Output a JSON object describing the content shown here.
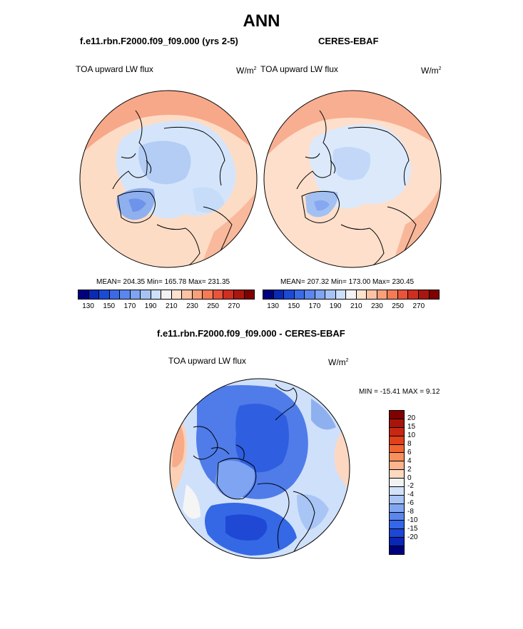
{
  "title": "ANN",
  "panels": {
    "model": {
      "title": "f.e11.rbn.F2000.f09_f09.000 (yrs 2-5)",
      "variable": "TOA upward LW flux",
      "units_base": "W/m",
      "units_exp": "2",
      "stats": "MEAN= 204.35  Min= 165.78  Max= 231.35"
    },
    "obs": {
      "title": "CERES-EBAF",
      "variable": "TOA upward LW flux",
      "units_base": "W/m",
      "units_exp": "2",
      "stats": "MEAN= 207.32  Min= 173.00  Max= 230.45"
    },
    "diff": {
      "title": "f.e11.rbn.F2000.f09_f09.000 - CERES-EBAF",
      "variable": "TOA upward LW flux",
      "units_base": "W/m",
      "units_exp": "2",
      "stats": "MIN = -15.41 MAX =   9.12"
    }
  },
  "colorbar_main": {
    "colors": [
      "#00007f",
      "#0a2ab4",
      "#1b4ad6",
      "#3b6ae6",
      "#5a86ee",
      "#7ea4f2",
      "#a6c3f6",
      "#cde0fb",
      "#f3f3f3",
      "#fde2cf",
      "#fbc3a4",
      "#f8a07a",
      "#f47b56",
      "#e9543a",
      "#cf2e21",
      "#a8170f",
      "#800000"
    ],
    "tick_labels": [
      "130",
      "150",
      "170",
      "190",
      "210",
      "230",
      "250",
      "270"
    ]
  },
  "colorbar_diff": {
    "colors": [
      "#800000",
      "#a8140a",
      "#c82812",
      "#e0401a",
      "#f26530",
      "#f7905c",
      "#fbb48e",
      "#fdd9c0",
      "#f2f2f2",
      "#d2e2fb",
      "#a9c5f6",
      "#82a6f2",
      "#5a86ee",
      "#3466e8",
      "#1b46d6",
      "#0a26b4",
      "#00007f"
    ],
    "tick_labels": [
      "20",
      "15",
      "10",
      "8",
      "6",
      "4",
      "2",
      "0",
      "-2",
      "-4",
      "-6",
      "-8",
      "-10",
      "-15",
      "-20"
    ]
  }
}
